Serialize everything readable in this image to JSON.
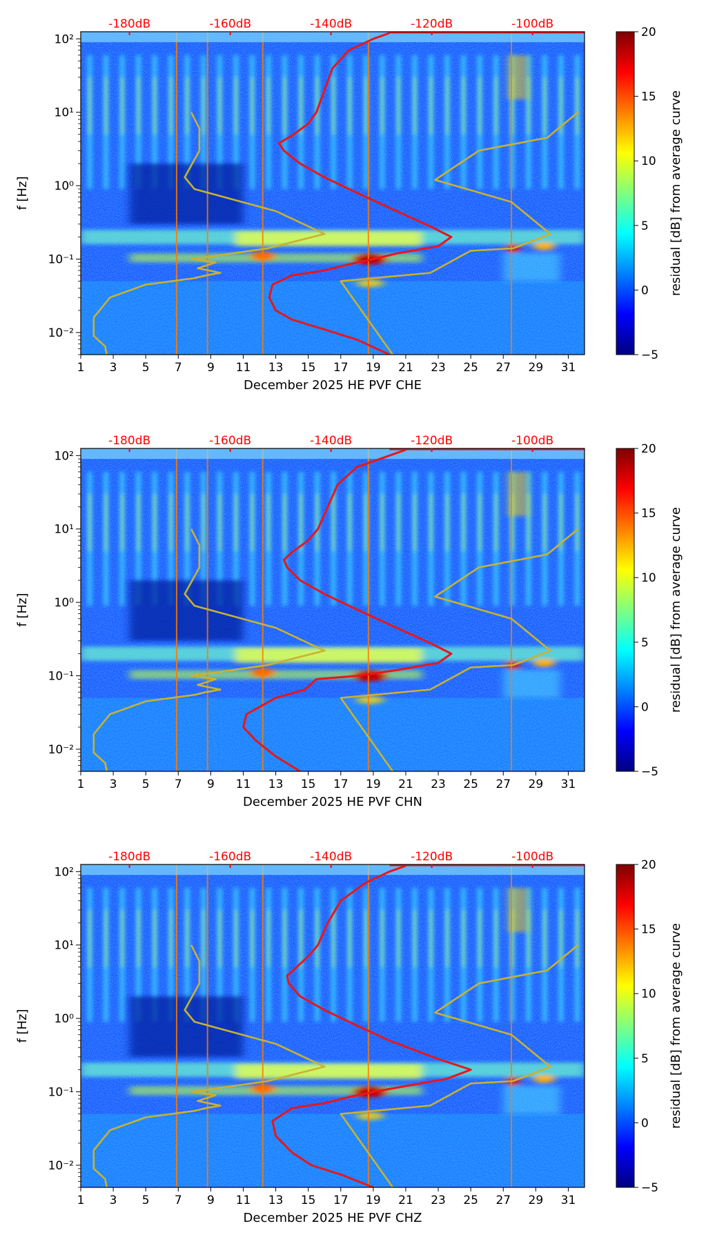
{
  "chart_data": [
    {
      "type": "heatmap",
      "title": "",
      "xlabel": "December 2025 HE PVF  CHE",
      "ylabel": "f [Hz]",
      "colorbar_label": "residual [dB] from average curve",
      "colorbar_ticks": [
        -5,
        0,
        5,
        10,
        15,
        20
      ],
      "colorbar_range": [
        -5,
        20
      ],
      "x_ticks": [
        "1",
        "3",
        "5",
        "7",
        "9",
        "11",
        "13",
        "15",
        "17",
        "19",
        "21",
        "23",
        "25",
        "27",
        "29",
        "31"
      ],
      "xlim": [
        1,
        32
      ],
      "y_tick_labels": [
        "10⁻²",
        "10⁻¹",
        "10⁰",
        "10¹",
        "10²"
      ],
      "ylim_hz": [
        0.005,
        125
      ],
      "db_labels": [
        "-180dB",
        "-160dB",
        "-140dB",
        "-120dB",
        "-100dB"
      ],
      "series": [
        {
          "name": "mean PSD curve",
          "color": "#e8161a",
          "points": [
            [
              20,
              0.005
            ],
            [
              18,
              0.008
            ],
            [
              16,
              0.011
            ],
            [
              14,
              0.015
            ],
            [
              13,
              0.02
            ],
            [
              12.6,
              0.03
            ],
            [
              12.8,
              0.045
            ],
            [
              14,
              0.06
            ],
            [
              16,
              0.07
            ],
            [
              17.5,
              0.085
            ],
            [
              19,
              0.1
            ],
            [
              20.5,
              0.12
            ],
            [
              23,
              0.15
            ],
            [
              23.8,
              0.2
            ],
            [
              22.5,
              0.28
            ],
            [
              20,
              0.5
            ],
            [
              18,
              0.8
            ],
            [
              16,
              1.3
            ],
            [
              14.5,
              2
            ],
            [
              13.5,
              3
            ],
            [
              13.2,
              3.8
            ],
            [
              14,
              4.8
            ],
            [
              15,
              7
            ],
            [
              15.5,
              10
            ],
            [
              16,
              20
            ],
            [
              16.5,
              40
            ],
            [
              17.5,
              70
            ],
            [
              19,
              100
            ],
            [
              20,
              120
            ]
          ]
        },
        {
          "name": "low noise model",
          "color": "#c9b232",
          "points": [
            [
              2.6,
              0.005
            ],
            [
              2.5,
              0.0065
            ],
            [
              1.8,
              0.009
            ],
            [
              1.8,
              0.016
            ],
            [
              2.8,
              0.03
            ],
            [
              5,
              0.045
            ],
            [
              8,
              0.055
            ],
            [
              8.7,
              0.06
            ],
            [
              9.6,
              0.065
            ],
            [
              8.2,
              0.075
            ],
            [
              9.3,
              0.09
            ],
            [
              7.8,
              0.1
            ],
            [
              12.5,
              0.14
            ],
            [
              16,
              0.22
            ],
            [
              13,
              0.45
            ],
            [
              8,
              0.9
            ],
            [
              7.4,
              1.3
            ],
            [
              8.3,
              3
            ],
            [
              8.3,
              6
            ],
            [
              7.8,
              10
            ]
          ]
        },
        {
          "name": "high noise model",
          "color": "#c9b232",
          "points": [
            [
              20.2,
              0.005
            ],
            [
              17,
              0.05
            ],
            [
              22.5,
              0.065
            ],
            [
              25,
              0.13
            ],
            [
              27.6,
              0.14
            ],
            [
              29.9,
              0.22
            ],
            [
              27.5,
              0.6
            ],
            [
              22.8,
              1.2
            ],
            [
              25.5,
              3
            ],
            [
              29.7,
              4.5
            ],
            [
              31.6,
              10
            ]
          ]
        }
      ]
    },
    {
      "type": "heatmap",
      "title": "",
      "xlabel": "December 2025 HE PVF  CHN",
      "ylabel": "f [Hz]",
      "colorbar_label": "residual [dB] from average curve",
      "colorbar_ticks": [
        -5,
        0,
        5,
        10,
        15,
        20
      ],
      "colorbar_range": [
        -5,
        20
      ],
      "x_ticks": [
        "1",
        "3",
        "5",
        "7",
        "9",
        "11",
        "13",
        "15",
        "17",
        "19",
        "21",
        "23",
        "25",
        "27",
        "29",
        "31"
      ],
      "xlim": [
        1,
        32
      ],
      "y_tick_labels": [
        "10⁻²",
        "10⁻¹",
        "10⁰",
        "10¹",
        "10²"
      ],
      "ylim_hz": [
        0.005,
        125
      ],
      "db_labels": [
        "-180dB",
        "-160dB",
        "-140dB",
        "-120dB",
        "-100dB"
      ],
      "series": [
        {
          "name": "mean PSD curve",
          "color": "#e8161a",
          "points": [
            [
              14.5,
              0.005
            ],
            [
              13,
              0.008
            ],
            [
              11.8,
              0.013
            ],
            [
              11,
              0.02
            ],
            [
              11.2,
              0.03
            ],
            [
              13,
              0.05
            ],
            [
              14.8,
              0.065
            ],
            [
              15.5,
              0.09
            ],
            [
              18,
              0.1
            ],
            [
              20.5,
              0.12
            ],
            [
              23,
              0.15
            ],
            [
              23.8,
              0.2
            ],
            [
              22.5,
              0.28
            ],
            [
              20,
              0.5
            ],
            [
              18,
              0.8
            ],
            [
              16,
              1.3
            ],
            [
              14.5,
              2
            ],
            [
              13.7,
              3
            ],
            [
              13.5,
              3.8
            ],
            [
              14,
              4.8
            ],
            [
              15,
              7
            ],
            [
              15.6,
              10
            ],
            [
              16.2,
              20
            ],
            [
              16.8,
              40
            ],
            [
              18,
              70
            ],
            [
              20,
              100
            ],
            [
              21,
              120
            ]
          ]
        },
        {
          "name": "low noise model",
          "color": "#c9b232",
          "points": [
            [
              2.6,
              0.005
            ],
            [
              2.5,
              0.0065
            ],
            [
              1.8,
              0.009
            ],
            [
              1.8,
              0.016
            ],
            [
              2.8,
              0.03
            ],
            [
              5,
              0.045
            ],
            [
              8,
              0.055
            ],
            [
              8.7,
              0.06
            ],
            [
              9.6,
              0.065
            ],
            [
              8.2,
              0.075
            ],
            [
              9.3,
              0.09
            ],
            [
              7.8,
              0.1
            ],
            [
              12.5,
              0.14
            ],
            [
              16,
              0.22
            ],
            [
              13,
              0.45
            ],
            [
              8,
              0.9
            ],
            [
              7.4,
              1.3
            ],
            [
              8.3,
              3
            ],
            [
              8.3,
              6
            ],
            [
              7.8,
              10
            ]
          ]
        },
        {
          "name": "high noise model",
          "color": "#c9b232",
          "points": [
            [
              20.2,
              0.005
            ],
            [
              17,
              0.05
            ],
            [
              22.5,
              0.065
            ],
            [
              25,
              0.13
            ],
            [
              27.6,
              0.14
            ],
            [
              29.9,
              0.22
            ],
            [
              27.5,
              0.6
            ],
            [
              22.8,
              1.2
            ],
            [
              25.5,
              3
            ],
            [
              29.7,
              4.5
            ],
            [
              31.6,
              10
            ]
          ]
        }
      ]
    },
    {
      "type": "heatmap",
      "title": "",
      "xlabel": "December 2025 HE PVF  CHZ",
      "ylabel": "f [Hz]",
      "colorbar_label": "residual [dB] from average curve",
      "colorbar_ticks": [
        -5,
        0,
        5,
        10,
        15,
        20
      ],
      "colorbar_range": [
        -5,
        20
      ],
      "x_ticks": [
        "1",
        "3",
        "5",
        "7",
        "9",
        "11",
        "13",
        "15",
        "17",
        "19",
        "21",
        "23",
        "25",
        "27",
        "29",
        "31"
      ],
      "xlim": [
        1,
        32
      ],
      "y_tick_labels": [
        "10⁻²",
        "10⁻¹",
        "10⁰",
        "10¹",
        "10²"
      ],
      "ylim_hz": [
        0.005,
        125
      ],
      "db_labels": [
        "-180dB",
        "-160dB",
        "-140dB",
        "-120dB",
        "-100dB"
      ],
      "series": [
        {
          "name": "mean PSD curve",
          "color": "#e8161a",
          "points": [
            [
              19,
              0.005
            ],
            [
              17,
              0.0075
            ],
            [
              15.2,
              0.01
            ],
            [
              14,
              0.015
            ],
            [
              13,
              0.025
            ],
            [
              12.8,
              0.04
            ],
            [
              14,
              0.06
            ],
            [
              16,
              0.07
            ],
            [
              17.5,
              0.085
            ],
            [
              19,
              0.1
            ],
            [
              21,
              0.12
            ],
            [
              23.5,
              0.15
            ],
            [
              25,
              0.2
            ],
            [
              23,
              0.28
            ],
            [
              20,
              0.5
            ],
            [
              18,
              0.8
            ],
            [
              16,
              1.3
            ],
            [
              14.5,
              2
            ],
            [
              13.8,
              3
            ],
            [
              13.7,
              3.8
            ],
            [
              14.2,
              4.8
            ],
            [
              15,
              7
            ],
            [
              15.6,
              10
            ],
            [
              16.2,
              20
            ],
            [
              17,
              40
            ],
            [
              18.5,
              70
            ],
            [
              20,
              100
            ],
            [
              21,
              120
            ]
          ]
        },
        {
          "name": "low noise model",
          "color": "#c9b232",
          "points": [
            [
              2.6,
              0.005
            ],
            [
              2.5,
              0.0065
            ],
            [
              1.8,
              0.009
            ],
            [
              1.8,
              0.016
            ],
            [
              2.8,
              0.03
            ],
            [
              5,
              0.045
            ],
            [
              8,
              0.055
            ],
            [
              8.7,
              0.06
            ],
            [
              9.6,
              0.065
            ],
            [
              8.2,
              0.075
            ],
            [
              9.3,
              0.09
            ],
            [
              7.8,
              0.1
            ],
            [
              12.5,
              0.14
            ],
            [
              16,
              0.22
            ],
            [
              13,
              0.45
            ],
            [
              8,
              0.9
            ],
            [
              7.4,
              1.3
            ],
            [
              8.3,
              3
            ],
            [
              8.3,
              6
            ],
            [
              7.8,
              10
            ]
          ]
        },
        {
          "name": "high noise model",
          "color": "#c9b232",
          "points": [
            [
              20.2,
              0.005
            ],
            [
              17,
              0.05
            ],
            [
              22.5,
              0.065
            ],
            [
              25,
              0.13
            ],
            [
              27.6,
              0.14
            ],
            [
              29.9,
              0.22
            ],
            [
              27.5,
              0.6
            ],
            [
              22.8,
              1.2
            ],
            [
              25.5,
              3
            ],
            [
              29.7,
              4.5
            ],
            [
              31.6,
              10
            ]
          ]
        }
      ]
    }
  ]
}
